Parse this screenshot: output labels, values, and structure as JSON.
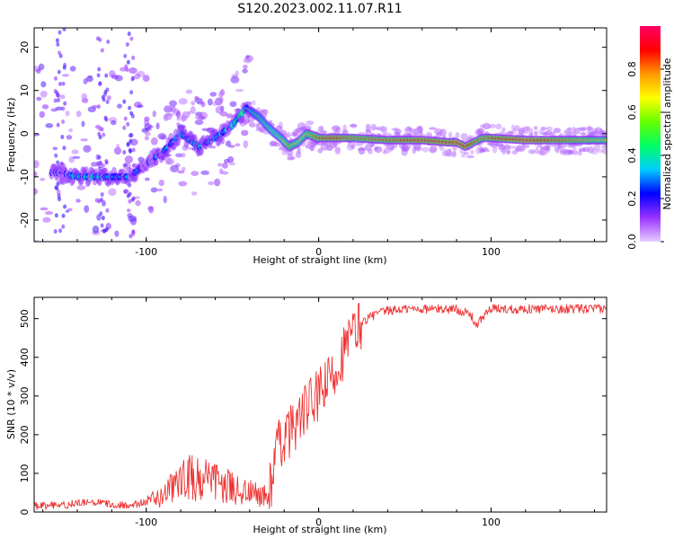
{
  "title": "S120.2023.002.11.07.R11",
  "chart_data": [
    {
      "type": "heatmap",
      "xlabel": "Height of straight line (km)",
      "ylabel": "Frequency (Hz)",
      "xlim": [
        -165,
        167
      ],
      "ylim": [
        -25,
        24.5
      ],
      "xticks": [
        -100,
        0,
        100
      ],
      "yticks": [
        -20,
        -10,
        0,
        10,
        20
      ],
      "colorbar": {
        "label": "Normalized spectral amplitude",
        "range": [
          0,
          1
        ],
        "ticks": [
          0.0,
          0.2,
          0.4,
          0.6,
          0.8
        ],
        "tick_labels": [
          "0.0",
          "0.2",
          "0.4",
          "0.6",
          "0.8"
        ],
        "colors": [
          "#e6ccff",
          "#9933ff",
          "#0000ff",
          "#00ccff",
          "#00ff66",
          "#66ff00",
          "#ffff00",
          "#ff9900",
          "#ff0000",
          "#ff0066"
        ]
      },
      "ridge": {
        "height_km": [
          -150,
          -140,
          -130,
          -120,
          -110,
          -100,
          -90,
          -80,
          -70,
          -60,
          -50,
          -42,
          -35,
          -28,
          -22,
          -17,
          -12,
          -7,
          0,
          10,
          20,
          40,
          60,
          75,
          80,
          85,
          90,
          95,
          100,
          120,
          167
        ],
        "frequency_hz": [
          -9,
          -10,
          -10,
          -10,
          -10,
          -7,
          -4,
          0,
          -3,
          -1,
          2,
          6,
          4,
          1,
          -1,
          -3,
          -2,
          0,
          -1,
          -1,
          -1,
          -1.5,
          -1.5,
          -2,
          -2,
          -3,
          -2,
          -1,
          -1,
          -1.5,
          -1.5
        ],
        "amplitude": [
          0.25,
          0.3,
          0.3,
          0.3,
          0.25,
          0.2,
          0.25,
          0.3,
          0.3,
          0.3,
          0.35,
          0.45,
          0.5,
          0.55,
          0.6,
          0.75,
          0.65,
          0.7,
          0.85,
          0.9,
          0.8,
          0.85,
          0.92,
          0.9,
          0.95,
          0.92,
          0.85,
          0.8,
          0.85,
          0.95,
          0.7
        ]
      }
    },
    {
      "type": "line",
      "xlabel": "Height of straight line (km)",
      "ylabel": "SNR (10 * v/v)",
      "xlim": [
        -165,
        167
      ],
      "ylim": [
        0,
        555
      ],
      "xticks": [
        -100,
        0,
        100
      ],
      "yticks": [
        0,
        100,
        200,
        300,
        400,
        500
      ],
      "color": "#ee3333",
      "x": [
        -165,
        -150,
        -140,
        -130,
        -120,
        -110,
        -100,
        -95,
        -90,
        -85,
        -80,
        -75,
        -70,
        -65,
        -60,
        -55,
        -50,
        -45,
        -40,
        -35,
        -30,
        -27,
        -25,
        -20,
        -15,
        -10,
        -5,
        0,
        5,
        10,
        15,
        20,
        25,
        30,
        35,
        40,
        50,
        60,
        70,
        80,
        88,
        92,
        95,
        100,
        110,
        120,
        130,
        140,
        150,
        160,
        167
      ],
      "y": [
        15,
        18,
        22,
        25,
        20,
        18,
        25,
        35,
        45,
        60,
        80,
        90,
        85,
        80,
        75,
        70,
        60,
        55,
        50,
        45,
        40,
        85,
        160,
        190,
        220,
        250,
        280,
        300,
        330,
        370,
        420,
        460,
        490,
        505,
        515,
        520,
        525,
        525,
        525,
        525,
        510,
        480,
        505,
        525,
        525,
        525,
        525,
        525,
        525,
        525,
        525
      ]
    }
  ]
}
